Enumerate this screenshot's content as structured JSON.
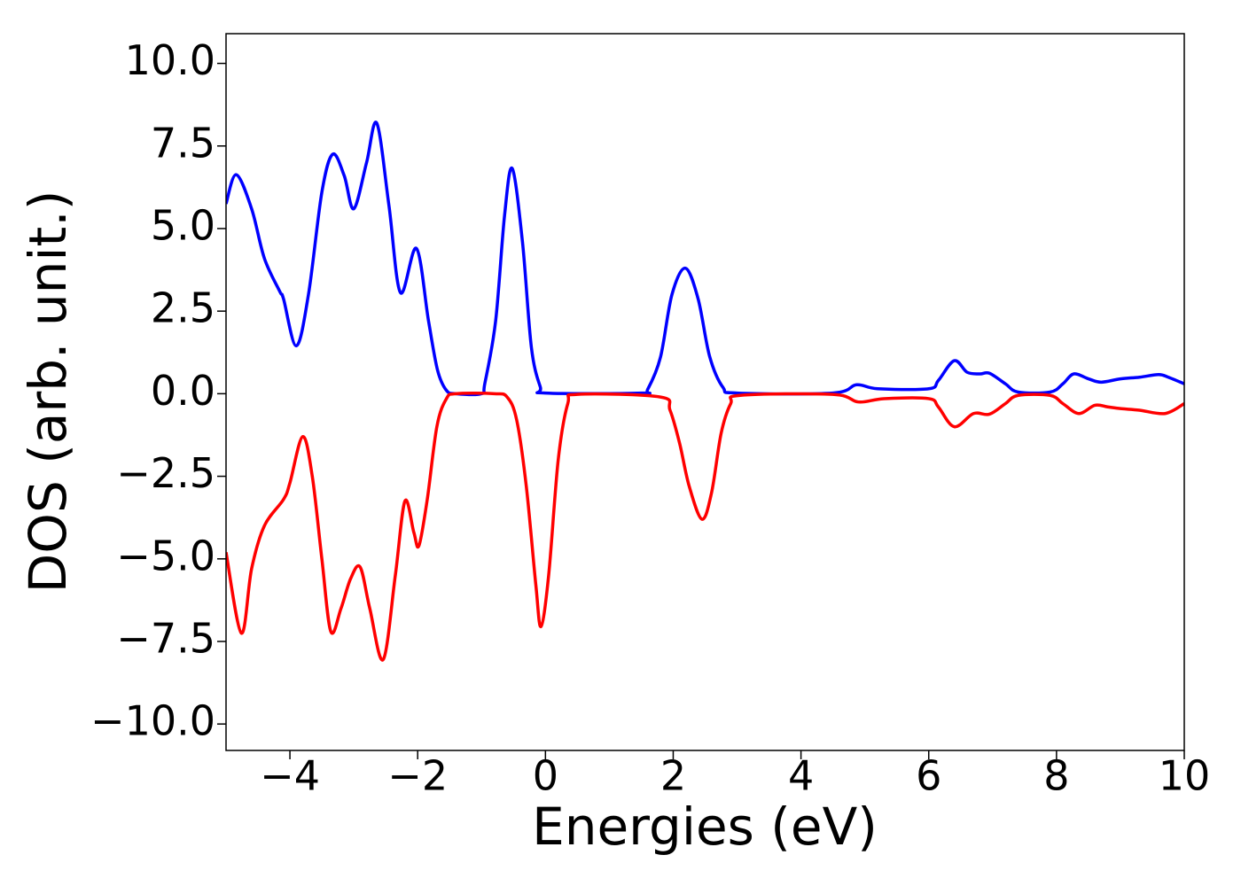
{
  "chart_data": {
    "type": "line",
    "xlabel": "Energies (eV)",
    "ylabel": "DOS (arb. unit.)",
    "xlim": [
      -5,
      10
    ],
    "ylim": [
      -10.8,
      10.9
    ],
    "xticks": [
      {
        "value": -4,
        "label": "−4"
      },
      {
        "value": -2,
        "label": "−2"
      },
      0,
      2,
      4,
      6,
      8,
      10
    ],
    "yticks": [
      {
        "value": -10,
        "label": "−10.0"
      },
      {
        "value": -7.5,
        "label": "−7.5"
      },
      {
        "value": -5,
        "label": "−5.0"
      },
      {
        "value": -2.5,
        "label": "−2.5"
      },
      {
        "value": 0,
        "label": "0.0"
      },
      {
        "value": 2.5,
        "label": "2.5"
      },
      {
        "value": 5,
        "label": "5.0"
      },
      {
        "value": 7.5,
        "label": "7.5"
      },
      {
        "value": 10,
        "label": "10.0"
      }
    ],
    "series": [
      {
        "color": "#0000ff",
        "x": [
          -5,
          -4.84,
          -4.6,
          -4.4,
          -4.16,
          -4.1,
          -3.9,
          -3.71,
          -3.5,
          -3.33,
          -3.15,
          -3.0,
          -2.8,
          -2.64,
          -2.45,
          -2.27,
          -2.02,
          -1.83,
          -1.69,
          -1.55,
          -1.4,
          -1.0,
          -0.95,
          -0.78,
          -0.64,
          -0.52,
          -0.36,
          -0.22,
          -0.08,
          0,
          1.5,
          1.6,
          1.8,
          1.98,
          2.19,
          2.39,
          2.57,
          2.78,
          3.0,
          4.5,
          4.87,
          5.2,
          6.0,
          6.15,
          6.4,
          6.6,
          6.8,
          6.95,
          7.2,
          7.4,
          7.9,
          8.1,
          8.27,
          8.5,
          8.7,
          9.0,
          9.3,
          9.6,
          9.75,
          10
        ],
        "values": [
          5.75,
          6.63,
          5.6,
          4.1,
          3.1,
          2.87,
          1.45,
          3.0,
          6.1,
          7.25,
          6.6,
          5.6,
          7.0,
          8.19,
          5.7,
          3.06,
          4.4,
          2.2,
          0.72,
          0.1,
          0,
          0,
          0.3,
          2.2,
          5.4,
          6.82,
          4.6,
          1.4,
          0.2,
          0.02,
          0.02,
          0.13,
          1.1,
          3.0,
          3.8,
          2.87,
          1.13,
          0.19,
          0.02,
          0.02,
          0.27,
          0.15,
          0.15,
          0.4,
          1.0,
          0.65,
          0.6,
          0.62,
          0.3,
          0.05,
          0.05,
          0.3,
          0.6,
          0.45,
          0.35,
          0.45,
          0.5,
          0.58,
          0.5,
          0.3
        ]
      },
      {
        "color": "#ff0000",
        "x": [
          -5,
          -4.76,
          -4.6,
          -4.4,
          -4.1,
          -4.0,
          -3.8,
          -3.65,
          -3.5,
          -3.36,
          -3.2,
          -3.05,
          -2.9,
          -2.75,
          -2.54,
          -2.35,
          -2.2,
          -2.06,
          -1.98,
          -1.85,
          -1.7,
          -1.55,
          -1.4,
          -0.8,
          -0.6,
          -0.45,
          -0.3,
          -0.15,
          -0.07,
          0.05,
          0.2,
          0.35,
          0.5,
          1.8,
          1.95,
          2.1,
          2.25,
          2.45,
          2.6,
          2.75,
          2.9,
          3.05,
          4.5,
          4.9,
          5.3,
          6.0,
          6.15,
          6.4,
          6.7,
          6.95,
          7.2,
          7.4,
          7.9,
          8.1,
          8.35,
          8.6,
          8.8,
          9.0,
          9.3,
          9.7,
          10
        ],
        "values": [
          -4.8,
          -7.25,
          -5.3,
          -4.0,
          -3.2,
          -2.7,
          -1.3,
          -2.5,
          -5.0,
          -7.2,
          -6.5,
          -5.6,
          -5.25,
          -6.5,
          -8.05,
          -5.5,
          -3.25,
          -4.2,
          -4.6,
          -3.2,
          -1.0,
          -0.15,
          0,
          0,
          -0.1,
          -0.8,
          -2.8,
          -5.8,
          -7.05,
          -5.5,
          -2.0,
          -0.3,
          -0.02,
          -0.1,
          -0.5,
          -1.5,
          -2.8,
          -3.8,
          -3.0,
          -1.2,
          -0.3,
          -0.05,
          -0.02,
          -0.25,
          -0.15,
          -0.15,
          -0.4,
          -1.0,
          -0.6,
          -0.62,
          -0.3,
          -0.05,
          -0.05,
          -0.3,
          -0.6,
          -0.35,
          -0.4,
          -0.45,
          -0.5,
          -0.6,
          -0.3
        ]
      }
    ]
  }
}
